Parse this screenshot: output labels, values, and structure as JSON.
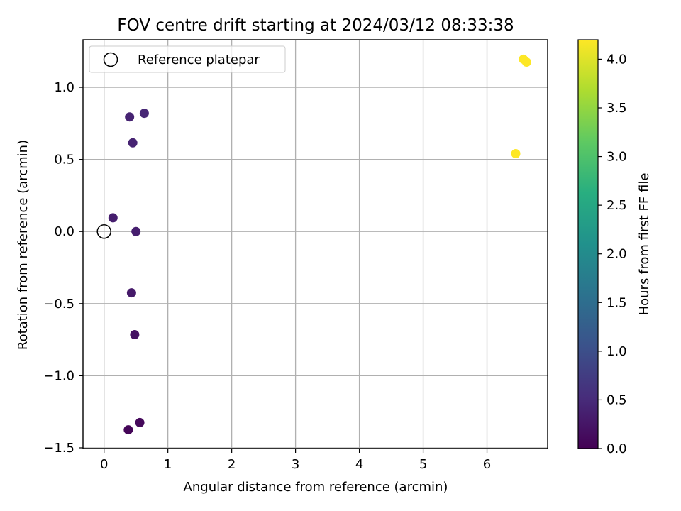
{
  "chart_data": {
    "type": "scatter",
    "title": "FOV centre drift starting at 2024/03/12 08:33:38",
    "xlabel": "Angular distance from reference (arcmin)",
    "ylabel": "Rotation from reference (arcmin)",
    "xlim": [
      -0.33,
      6.95
    ],
    "ylim": [
      -1.505,
      1.33
    ],
    "xticks": [
      "0",
      "1",
      "2",
      "3",
      "4",
      "5",
      "6"
    ],
    "yticks": [
      "−1.5",
      "−1.0",
      "−0.5",
      "0.0",
      "0.5",
      "1.0"
    ],
    "grid": true,
    "legend": {
      "position": "top-left",
      "entries": [
        "Reference platepar"
      ]
    },
    "reference_point": {
      "x": 0,
      "y": 0
    },
    "colorbar": {
      "label": "Hours from first FF file",
      "range": [
        0.0,
        4.2
      ],
      "ticks": [
        "0.0",
        "0.5",
        "1.0",
        "1.5",
        "2.0",
        "2.5",
        "3.0",
        "3.5",
        "4.0"
      ],
      "colormap": "viridis"
    },
    "points": [
      {
        "x": 0.38,
        "y": -1.375,
        "hours": 0.05
      },
      {
        "x": 0.56,
        "y": -1.325,
        "hours": 0.1
      },
      {
        "x": 0.48,
        "y": -0.715,
        "hours": 0.2
      },
      {
        "x": 0.43,
        "y": -0.425,
        "hours": 0.3
      },
      {
        "x": 0.5,
        "y": 0.0,
        "hours": 0.35
      },
      {
        "x": 0.14,
        "y": 0.095,
        "hours": 0.35
      },
      {
        "x": 0.45,
        "y": 0.615,
        "hours": 0.4
      },
      {
        "x": 0.4,
        "y": 0.795,
        "hours": 0.4
      },
      {
        "x": 0.63,
        "y": 0.82,
        "hours": 0.45
      },
      {
        "x": 6.45,
        "y": 0.54,
        "hours": 4.2
      },
      {
        "x": 6.57,
        "y": 1.195,
        "hours": 4.2
      },
      {
        "x": 6.62,
        "y": 1.175,
        "hours": 4.2
      }
    ]
  }
}
